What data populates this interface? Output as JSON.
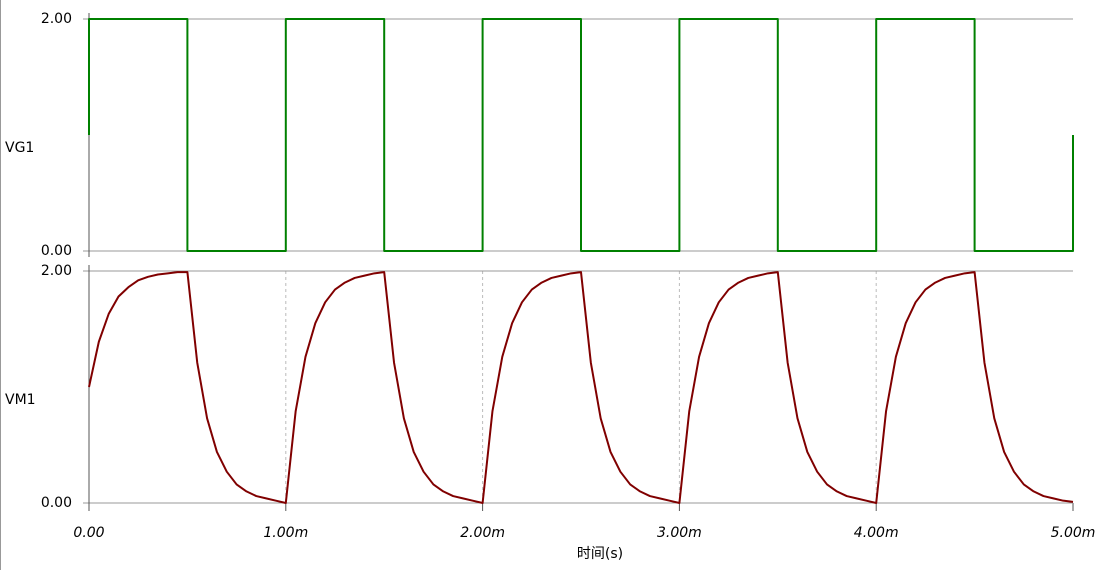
{
  "chart_data": [
    {
      "type": "line",
      "x": [
        0,
        0,
        0.0005,
        0.0005,
        0.001,
        0.001,
        0.0015,
        0.0015,
        0.002,
        0.002,
        0.0025,
        0.0025,
        0.003,
        0.003,
        0.0035,
        0.0035,
        0.004,
        0.004,
        0.0045,
        0.0045,
        0.005,
        0.005
      ],
      "series": [
        {
          "name": "VG1",
          "color": "#008000",
          "values": [
            1,
            2,
            2,
            0,
            0,
            2,
            2,
            0,
            0,
            2,
            2,
            0,
            0,
            2,
            2,
            0,
            0,
            2,
            2,
            0,
            0,
            1
          ]
        }
      ],
      "xlim": [
        0,
        0.005
      ],
      "ylim": [
        0,
        2
      ],
      "yticks": [
        {
          "value": 0,
          "label": "0.00"
        },
        {
          "value": 2,
          "label": "2.00"
        }
      ],
      "grid": true
    },
    {
      "type": "line",
      "x": [
        0,
        5e-05,
        0.0001,
        0.00015,
        0.0002,
        0.00025,
        0.0003,
        0.00035,
        0.0004,
        0.00045,
        0.0005,
        0.00055,
        0.0006,
        0.00065,
        0.0007,
        0.00075,
        0.0008,
        0.00085,
        0.0009,
        0.00095,
        0.001,
        0.00105,
        0.0011,
        0.00115,
        0.0012,
        0.00125,
        0.0013,
        0.00135,
        0.0014,
        0.00145,
        0.0015,
        0.00155,
        0.0016,
        0.00165,
        0.0017,
        0.00175,
        0.0018,
        0.00185,
        0.0019,
        0.00195,
        0.002,
        0.00205,
        0.0021,
        0.00215,
        0.0022,
        0.00225,
        0.0023,
        0.00235,
        0.0024,
        0.00245,
        0.0025,
        0.00255,
        0.0026,
        0.00265,
        0.0027,
        0.00275,
        0.0028,
        0.00285,
        0.0029,
        0.00295,
        0.003,
        0.00305,
        0.0031,
        0.00315,
        0.0032,
        0.00325,
        0.0033,
        0.00335,
        0.0034,
        0.00345,
        0.0035,
        0.00355,
        0.0036,
        0.00365,
        0.0037,
        0.00375,
        0.0038,
        0.00385,
        0.0039,
        0.00395,
        0.004,
        0.00405,
        0.0041,
        0.00415,
        0.0042,
        0.00425,
        0.0043,
        0.00435,
        0.0044,
        0.00445,
        0.0045,
        0.00455,
        0.0046,
        0.00465,
        0.0047,
        0.00475,
        0.0048,
        0.00485,
        0.0049,
        0.00495,
        0.005
      ],
      "series": [
        {
          "name": "VM1",
          "color": "#800000",
          "values": [
            1,
            1.39,
            1.63,
            1.78,
            1.86,
            1.92,
            1.95,
            1.97,
            1.98,
            1.99,
            1.99,
            1.21,
            0.73,
            0.44,
            0.27,
            0.16,
            0.1,
            0.06,
            0.04,
            0.02,
            0,
            0.79,
            1.26,
            1.55,
            1.73,
            1.84,
            1.9,
            1.94,
            1.96,
            1.98,
            1.99,
            1.21,
            0.73,
            0.44,
            0.27,
            0.16,
            0.1,
            0.06,
            0.04,
            0.02,
            0,
            0.79,
            1.26,
            1.55,
            1.73,
            1.84,
            1.9,
            1.94,
            1.96,
            1.98,
            1.99,
            1.21,
            0.73,
            0.44,
            0.27,
            0.16,
            0.1,
            0.06,
            0.04,
            0.02,
            0,
            0.79,
            1.26,
            1.55,
            1.73,
            1.84,
            1.9,
            1.94,
            1.96,
            1.98,
            1.99,
            1.21,
            0.73,
            0.44,
            0.27,
            0.16,
            0.1,
            0.06,
            0.04,
            0.02,
            0,
            0.79,
            1.26,
            1.55,
            1.73,
            1.84,
            1.9,
            1.94,
            1.96,
            1.98,
            1.99,
            1.21,
            0.73,
            0.44,
            0.27,
            0.16,
            0.1,
            0.06,
            0.04,
            0.02,
            0.01
          ]
        }
      ],
      "xlim": [
        0,
        0.005
      ],
      "xticks": [
        {
          "value": 0,
          "label": "0.00"
        },
        {
          "value": 0.001,
          "label": "1.00m"
        },
        {
          "value": 0.002,
          "label": "2.00m"
        },
        {
          "value": 0.003,
          "label": "3.00m"
        },
        {
          "value": 0.004,
          "label": "4.00m"
        },
        {
          "value": 0.005,
          "label": "5.00m"
        }
      ],
      "ylim": [
        0,
        2
      ],
      "yticks": [
        {
          "value": 0,
          "label": "0.00"
        },
        {
          "value": 2,
          "label": "2.00"
        }
      ],
      "xlabel": "时间(s)",
      "grid": true
    }
  ]
}
